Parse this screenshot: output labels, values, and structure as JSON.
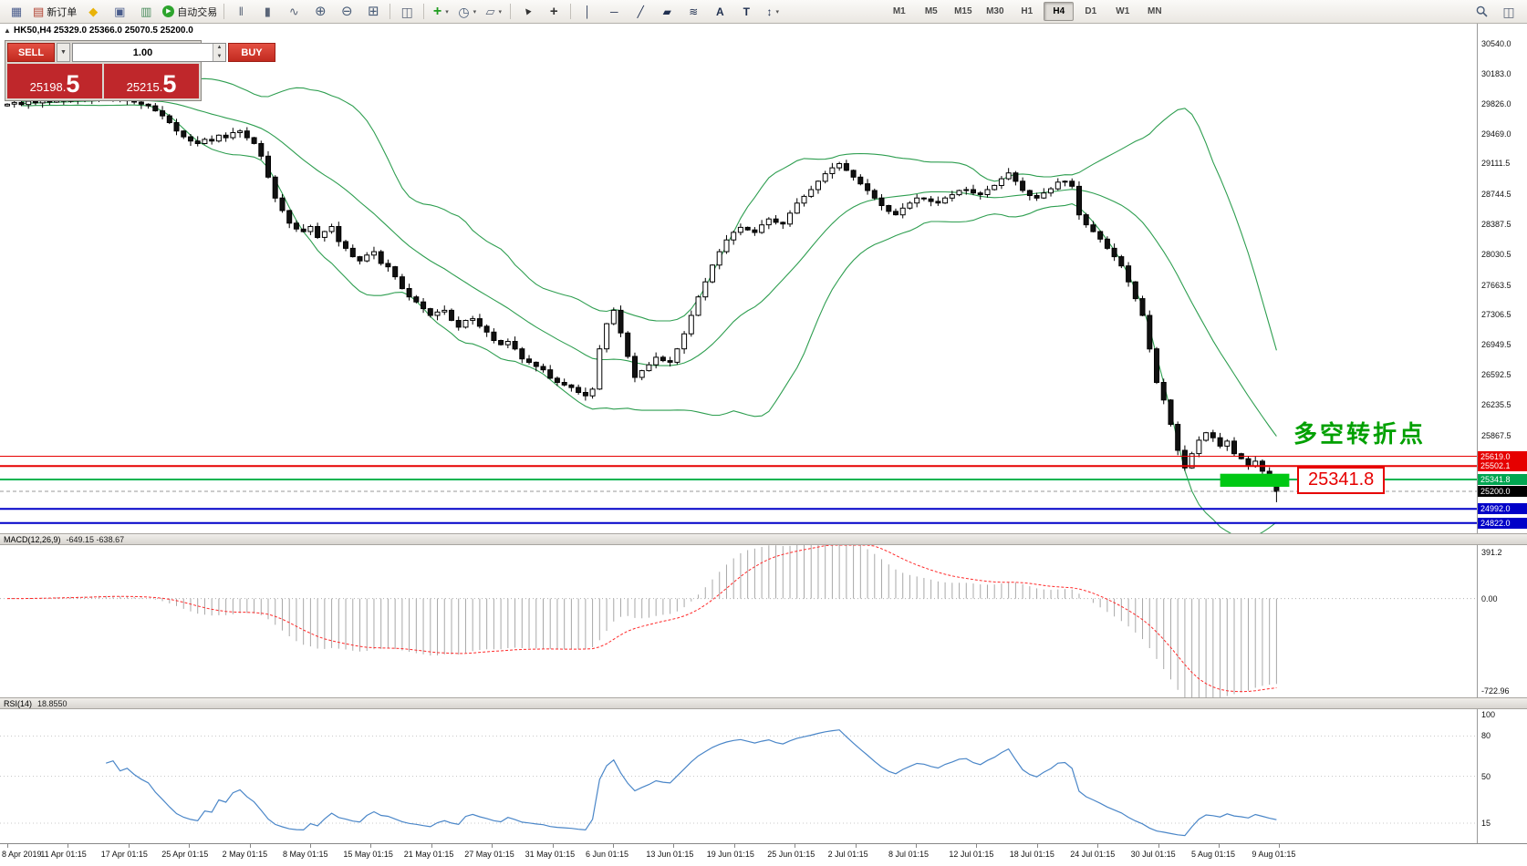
{
  "toolbar": {
    "new_order": "新订单",
    "autotrade": "自动交易",
    "buttons": [
      {
        "name": "new-chart",
        "icon": "chart-icon"
      },
      {
        "name": "new-order",
        "icon": "order-icon",
        "label": "新订单"
      },
      {
        "name": "profile",
        "icon": "diamond-icon"
      },
      {
        "name": "market-watch",
        "icon": "window-icon"
      },
      {
        "name": "data-window",
        "icon": "panel-icon"
      },
      {
        "name": "autotrade",
        "icon": "play-icon",
        "label": "自动交易"
      },
      {
        "sep": true
      },
      {
        "name": "bars-chart",
        "icon": "bars-icon"
      },
      {
        "name": "candles-chart",
        "icon": "candles-icon"
      },
      {
        "name": "line-chart",
        "icon": "line-icon"
      },
      {
        "name": "zoom-in",
        "icon": "zoom-in-icon"
      },
      {
        "name": "zoom-out",
        "icon": "zoom-out-icon"
      },
      {
        "name": "grid",
        "icon": "grid-icon"
      },
      {
        "sep": true
      },
      {
        "name": "tile-windows",
        "icon": "tile-icon"
      },
      {
        "sep": true
      },
      {
        "name": "indicators",
        "icon": "plus-icon",
        "dd": true
      },
      {
        "name": "periods",
        "icon": "clock-icon",
        "dd": true
      },
      {
        "name": "templates",
        "icon": "template-icon",
        "dd": true
      },
      {
        "sep": true
      },
      {
        "name": "cursor",
        "icon": "cursor-icon"
      },
      {
        "name": "crosshair",
        "icon": "crosshair-icon"
      },
      {
        "sep": true
      },
      {
        "name": "vertical-line",
        "icon": "vline-icon"
      },
      {
        "name": "horizontal-line",
        "icon": "hline-icon"
      },
      {
        "name": "trendline",
        "icon": "trendline-icon"
      },
      {
        "name": "channel",
        "icon": "channel-icon"
      },
      {
        "name": "fibonacci",
        "icon": "fibo-icon"
      },
      {
        "name": "text",
        "icon": "text-icon"
      },
      {
        "name": "label",
        "icon": "label-icon"
      },
      {
        "name": "arrows",
        "icon": "arrows-icon",
        "dd": true
      }
    ],
    "timeframes": [
      "M1",
      "M5",
      "M15",
      "M30",
      "H1",
      "H4",
      "D1",
      "W1",
      "MN"
    ],
    "active_timeframe": "H4"
  },
  "chart": {
    "symbol_info": "HK50,H4  25329.0 25366.0 25070.5 25200.0",
    "annotation_text": "多空转折点",
    "price_callout": "25341.8",
    "axis_ticks": [
      30540.0,
      30183.0,
      29826.0,
      29469.0,
      29111.5,
      28744.5,
      28387.5,
      28030.5,
      27663.5,
      27306.5,
      26949.5,
      26592.5,
      26235.5,
      25867.5
    ],
    "price_tags": [
      {
        "text": "25619.0",
        "value": 25619.0,
        "bg": "#e60000"
      },
      {
        "text": "25502.1",
        "value": 25502.1,
        "bg": "#e60000"
      },
      {
        "text": "25341.8",
        "value": 25341.8,
        "bg": "#00a651"
      },
      {
        "text": "25200.0",
        "value": 25200.0,
        "bg": "#000000"
      },
      {
        "text": "24992.0",
        "value": 24992.0,
        "bg": "#0000c8"
      },
      {
        "text": "24822.0",
        "value": 24822.0,
        "bg": "#0000c8"
      }
    ]
  },
  "one_click": {
    "sell_label": "SELL",
    "buy_label": "BUY",
    "volume": "1.00",
    "sell_price": {
      "main": "25198.",
      "big": "5"
    },
    "buy_price": {
      "main": "25215.",
      "big": "5"
    }
  },
  "macd_panel": {
    "label": "MACD(12,26,9)",
    "values": "-649.15 -638.67",
    "axis_max": "391.2",
    "axis_zero": "0.00",
    "axis_min": "-722.96"
  },
  "rsi_panel": {
    "label": "RSI(14)",
    "value": "18.8550",
    "axis": [
      100,
      80,
      50,
      15
    ],
    "levels": [
      80,
      50,
      15
    ]
  },
  "timeline": {
    "labels": [
      "8 Apr 2019",
      "11 Apr 01:15",
      "17 Apr 01:15",
      "25 Apr 01:15",
      "2 May 01:15",
      "8 May 01:15",
      "15 May 01:15",
      "21 May 01:15",
      "27 May 01:15",
      "31 May 01:15",
      "6 Jun 01:15",
      "13 Jun 01:15",
      "19 Jun 01:15",
      "25 Jun 01:15",
      "2 Jul 01:15",
      "8 Jul 01:15",
      "12 Jul 01:15",
      "18 Jul 01:15",
      "24 Jul 01:15",
      "30 Jul 01:15",
      "5 Aug 01:15",
      "9 Aug 01:15"
    ]
  },
  "chart_data": {
    "type": "candlestick",
    "symbol": "HK50",
    "timeframe": "H4",
    "ohlc_current": {
      "open": 25329.0,
      "high": 25366.0,
      "low": 25070.5,
      "close": 25200.0
    },
    "price_min": 24700,
    "price_max": 30780,
    "open0": 29800,
    "closes": [
      29820,
      29840,
      29815,
      29855,
      29835,
      29860,
      29845,
      29875,
      29855,
      29885,
      29870,
      29900,
      29880,
      29920,
      29890,
      29905,
      29860,
      29875,
      29845,
      29820,
      29800,
      29740,
      29680,
      29600,
      29500,
      29430,
      29380,
      29350,
      29400,
      29380,
      29450,
      29420,
      29480,
      29500,
      29420,
      29350,
      29200,
      28950,
      28700,
      28550,
      28400,
      28330,
      28300,
      28360,
      28230,
      28300,
      28360,
      28180,
      28100,
      28000,
      27950,
      28020,
      28060,
      27920,
      27880,
      27760,
      27620,
      27520,
      27460,
      27380,
      27300,
      27340,
      27360,
      27240,
      27160,
      27240,
      27260,
      27170,
      27100,
      27000,
      26950,
      26990,
      26900,
      26780,
      26740,
      26690,
      26650,
      26550,
      26500,
      26470,
      26440,
      26380,
      26340,
      26420,
      26900,
      27200,
      27360,
      27090,
      26810,
      26560,
      26640,
      26710,
      26800,
      26760,
      26740,
      26900,
      27080,
      27300,
      27520,
      27700,
      27900,
      28060,
      28200,
      28290,
      28350,
      28320,
      28290,
      28380,
      28450,
      28410,
      28390,
      28520,
      28640,
      28720,
      28800,
      28900,
      28990,
      29060,
      29110,
      29030,
      28950,
      28870,
      28790,
      28700,
      28610,
      28540,
      28500,
      28580,
      28640,
      28700,
      28690,
      28660,
      28640,
      28700,
      28740,
      28790,
      28800,
      28760,
      28740,
      28800,
      28850,
      28930,
      29000,
      28900,
      28790,
      28730,
      28700,
      28760,
      28810,
      28890,
      28900,
      28840,
      28500,
      28380,
      28300,
      28210,
      28100,
      28000,
      27890,
      27700,
      27500,
      27300,
      26900,
      26500,
      26290,
      26000,
      25690,
      25480,
      25650,
      25810,
      25900,
      25840,
      25740,
      25800,
      25650,
      25590,
      25500,
      25560,
      25440,
      25310,
      25200
    ],
    "overlays": {
      "bollinger_period": 20,
      "bollinger_dev": 2,
      "bollinger_color": "#2e9e50"
    },
    "levels": [
      {
        "value": 25619.0,
        "color": "#e60000",
        "width": 1
      },
      {
        "value": 25502.1,
        "color": "#e60000",
        "width": 2
      },
      {
        "value": 25341.8,
        "color": "#00b450",
        "width": 2
      },
      {
        "value": 25200.0,
        "color": "#9a9a9a",
        "width": 1,
        "dash": "4,3"
      },
      {
        "value": 24992.0,
        "color": "#0000c8",
        "width": 2
      },
      {
        "value": 24822.0,
        "color": "#0000c8",
        "width": 2
      }
    ],
    "zone": {
      "from_candle": 172,
      "to_candle": 181.8,
      "price_top": 25410,
      "price_bottom": 25255,
      "color": "#00c814"
    },
    "indicators": {
      "macd": {
        "fast": 12,
        "slow": 26,
        "signal": 9,
        "current": -649.15,
        "signal_current": -638.67,
        "range": [
          -722.96,
          391.2
        ],
        "histogram_color": "#a8a8a8",
        "signal_color": "#ff2a2a"
      },
      "rsi": {
        "period": 14,
        "current": 18.855,
        "line_color": "#4a86c8"
      }
    }
  }
}
